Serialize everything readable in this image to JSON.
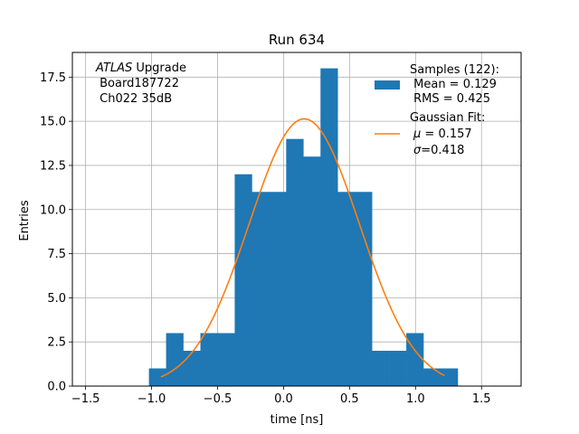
{
  "chart_data": {
    "type": "bar",
    "title": "Run 634",
    "xlabel": "time [ns]",
    "ylabel": "Entries",
    "xlim": [
      -1.6,
      1.8
    ],
    "ylim": [
      0,
      18.9
    ],
    "grid": true,
    "xticks": [
      -1.5,
      -1.0,
      -0.5,
      0.0,
      0.5,
      1.0,
      1.5
    ],
    "xtick_labels": [
      "−1.5",
      "−1.0",
      "−0.5",
      "0.0",
      "0.5",
      "1.0",
      "1.5"
    ],
    "yticks": [
      0.0,
      2.5,
      5.0,
      7.5,
      10.0,
      12.5,
      15.0,
      17.5
    ],
    "ytick_labels": [
      "0.0",
      "2.5",
      "5.0",
      "7.5",
      "10.0",
      "12.5",
      "15.0",
      "17.5"
    ],
    "histogram": {
      "color": "#1f77b4",
      "bin_edges": [
        -1.02,
        -0.89,
        -0.76,
        -0.63,
        -0.5,
        -0.37,
        -0.24,
        -0.11,
        0.02,
        0.15,
        0.28,
        0.41,
        0.54,
        0.67,
        0.8,
        0.93,
        1.06,
        1.19,
        1.32
      ],
      "counts": [
        1,
        3,
        2,
        3,
        3,
        12,
        11,
        11,
        14,
        13,
        18,
        11,
        11,
        2,
        2,
        3,
        1,
        1
      ]
    },
    "gaussian_fit": {
      "color": "#ff7f0e",
      "mu": 0.157,
      "sigma": 0.418,
      "x_range": [
        -0.93,
        1.22
      ]
    },
    "annotation": {
      "line1_italic": "ATLAS",
      "line1_rest": " Upgrade",
      "line2": " Board187722",
      "line3": " Ch022 35dB"
    },
    "legend": {
      "placement": "upper right",
      "samples_title": "Samples (122):",
      "samples_mean": " Mean = 0.129",
      "samples_rms": " RMS = 0.425",
      "fit_title": "Gaussian Fit:",
      "fit_mu_symbol": "μ",
      "fit_mu_text": " = 0.157",
      "fit_sigma_symbol": "σ",
      "fit_sigma_text": "=0.418"
    }
  }
}
